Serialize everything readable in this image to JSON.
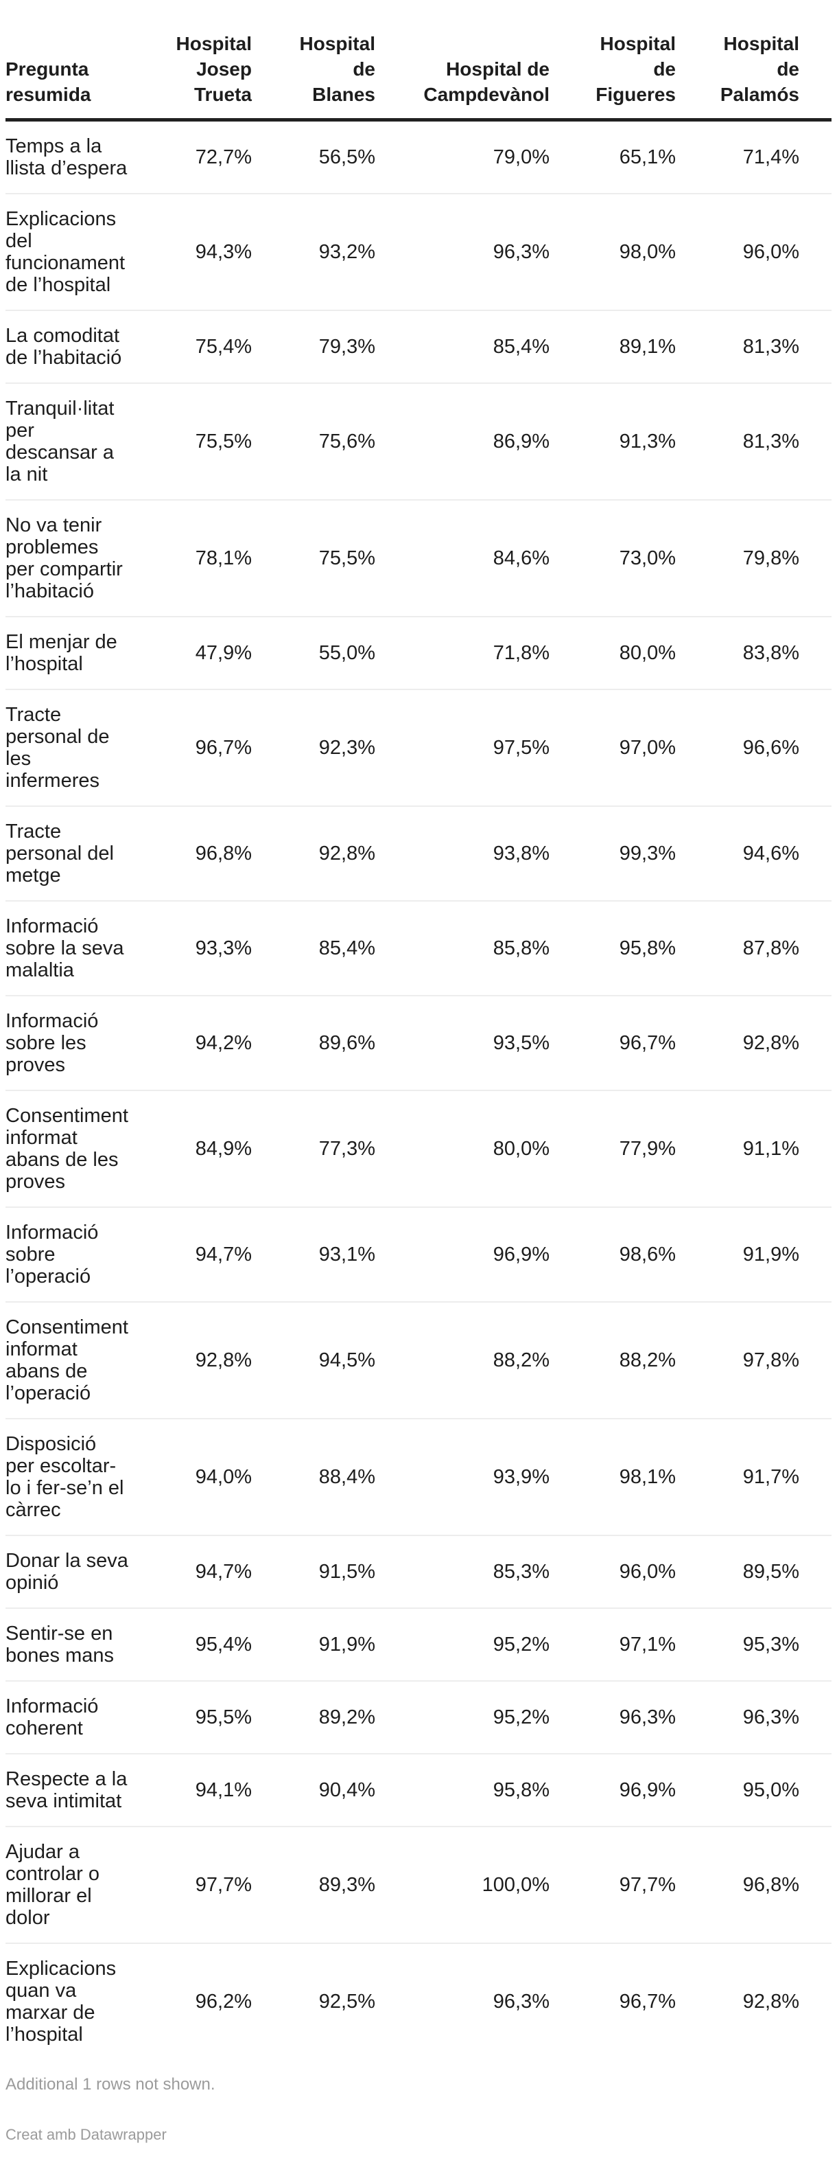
{
  "colors": {
    "text": "#1d1d1d",
    "header_rule": "#212121",
    "row_separator": "#ededed",
    "muted_text": "#9b9b9b",
    "background": "#ffffff"
  },
  "table": {
    "columns": [
      {
        "label": "Pregunta\nresumida"
      },
      {
        "label": "Hospital\nJosep\nTrueta"
      },
      {
        "label": "Hospital\nde\nBlanes"
      },
      {
        "label": "Hospital de\nCampdevànol"
      },
      {
        "label": "Hospital\nde\nFigueres"
      },
      {
        "label": "Hospital\nde\nPalamós"
      }
    ],
    "rows": [
      {
        "label": "Temps a la\nllista d’espera",
        "values": [
          "72,7%",
          "56,5%",
          "79,0%",
          "65,1%",
          "71,4%"
        ]
      },
      {
        "label": "Explicacions\ndel\nfuncionament\nde l’hospital",
        "values": [
          "94,3%",
          "93,2%",
          "96,3%",
          "98,0%",
          "96,0%"
        ]
      },
      {
        "label": "La comoditat\nde l’habitació",
        "values": [
          "75,4%",
          "79,3%",
          "85,4%",
          "89,1%",
          "81,3%"
        ]
      },
      {
        "label": "Tranquil·litat\nper\ndescansar a\nla nit",
        "values": [
          "75,5%",
          "75,6%",
          "86,9%",
          "91,3%",
          "81,3%"
        ]
      },
      {
        "label": "No va tenir\nproblemes\nper compartir\nl’habitació",
        "values": [
          "78,1%",
          "75,5%",
          "84,6%",
          "73,0%",
          "79,8%"
        ]
      },
      {
        "label": "El menjar de\nl’hospital",
        "values": [
          "47,9%",
          "55,0%",
          "71,8%",
          "80,0%",
          "83,8%"
        ]
      },
      {
        "label": "Tracte\npersonal de\nles\ninfermeres",
        "values": [
          "96,7%",
          "92,3%",
          "97,5%",
          "97,0%",
          "96,6%"
        ]
      },
      {
        "label": "Tracte\npersonal del\nmetge",
        "values": [
          "96,8%",
          "92,8%",
          "93,8%",
          "99,3%",
          "94,6%"
        ]
      },
      {
        "label": "Informació\nsobre la seva\nmalaltia",
        "values": [
          "93,3%",
          "85,4%",
          "85,8%",
          "95,8%",
          "87,8%"
        ]
      },
      {
        "label": "Informació\nsobre les\nproves",
        "values": [
          "94,2%",
          "89,6%",
          "93,5%",
          "96,7%",
          "92,8%"
        ]
      },
      {
        "label": "Consentiment\ninformat\nabans de les\nproves",
        "values": [
          "84,9%",
          "77,3%",
          "80,0%",
          "77,9%",
          "91,1%"
        ]
      },
      {
        "label": "Informació\nsobre\nl’operació",
        "values": [
          "94,7%",
          "93,1%",
          "96,9%",
          "98,6%",
          "91,9%"
        ]
      },
      {
        "label": "Consentiment\ninformat\nabans de\nl’operació",
        "values": [
          "92,8%",
          "94,5%",
          "88,2%",
          "88,2%",
          "97,8%"
        ]
      },
      {
        "label": "Disposició\nper escoltar-\nlo i fer-se’n el\ncàrrec",
        "values": [
          "94,0%",
          "88,4%",
          "93,9%",
          "98,1%",
          "91,7%"
        ]
      },
      {
        "label": "Donar la seva\nopinió",
        "values": [
          "94,7%",
          "91,5%",
          "85,3%",
          "96,0%",
          "89,5%"
        ]
      },
      {
        "label": "Sentir-se en\nbones mans",
        "values": [
          "95,4%",
          "91,9%",
          "95,2%",
          "97,1%",
          "95,3%"
        ]
      },
      {
        "label": "Informació\ncoherent",
        "values": [
          "95,5%",
          "89,2%",
          "95,2%",
          "96,3%",
          "96,3%"
        ]
      },
      {
        "label": "Respecte a la\nseva intimitat",
        "values": [
          "94,1%",
          "90,4%",
          "95,8%",
          "96,9%",
          "95,0%"
        ]
      },
      {
        "label": "Ajudar a\ncontrolar o\nmillorar el\ndolor",
        "values": [
          "97,7%",
          "89,3%",
          "100,0%",
          "97,7%",
          "96,8%"
        ]
      },
      {
        "label": "Explicacions\nquan va\nmarxar de\nl’hospital",
        "values": [
          "96,2%",
          "92,5%",
          "96,3%",
          "96,7%",
          "92,8%"
        ]
      }
    ]
  },
  "footer": {
    "note": "Additional 1 rows not shown.",
    "byline": "Creat amb Datawrapper"
  },
  "chart_data": {
    "type": "table",
    "title": "",
    "row_header": "Pregunta resumida",
    "categories": [
      "Temps a la llista d’espera",
      "Explicacions del funcionament de l’hospital",
      "La comoditat de l’habitació",
      "Tranquil·litat per descansar a la nit",
      "No va tenir problemes per compartir l’habitació",
      "El menjar de l’hospital",
      "Tracte personal de les infermeres",
      "Tracte personal del metge",
      "Informació sobre la seva malaltia",
      "Informació sobre les proves",
      "Consentiment informat abans de les proves",
      "Informació sobre l’operació",
      "Consentiment informat abans de l’operació",
      "Disposició per escoltar-lo i fer-se’n el càrrec",
      "Donar la seva opinió",
      "Sentir-se en bones mans",
      "Informació coherent",
      "Respecte a la seva intimitat",
      "Ajudar a controlar o millorar el dolor",
      "Explicacions quan va marxar de l’hospital"
    ],
    "series": [
      {
        "name": "Hospital Josep Trueta",
        "values": [
          72.7,
          94.3,
          75.4,
          75.5,
          78.1,
          47.9,
          96.7,
          96.8,
          93.3,
          94.2,
          84.9,
          94.7,
          92.8,
          94.0,
          94.7,
          95.4,
          95.5,
          94.1,
          97.7,
          96.2
        ]
      },
      {
        "name": "Hospital de Blanes",
        "values": [
          56.5,
          93.2,
          79.3,
          75.6,
          75.5,
          55.0,
          92.3,
          92.8,
          85.4,
          89.6,
          77.3,
          93.1,
          94.5,
          88.4,
          91.5,
          91.9,
          89.2,
          90.4,
          89.3,
          92.5
        ]
      },
      {
        "name": "Hospital de Campdevànol",
        "values": [
          79.0,
          96.3,
          85.4,
          86.9,
          84.6,
          71.8,
          97.5,
          93.8,
          85.8,
          93.5,
          80.0,
          96.9,
          88.2,
          93.9,
          85.3,
          95.2,
          95.2,
          95.8,
          100.0,
          96.3
        ]
      },
      {
        "name": "Hospital de Figueres",
        "values": [
          65.1,
          98.0,
          89.1,
          91.3,
          73.0,
          80.0,
          97.0,
          99.3,
          95.8,
          96.7,
          77.9,
          98.6,
          88.2,
          98.1,
          96.0,
          97.1,
          96.3,
          96.9,
          97.7,
          96.7
        ]
      },
      {
        "name": "Hospital de Palamós",
        "values": [
          71.4,
          96.0,
          81.3,
          81.3,
          79.8,
          83.8,
          96.6,
          94.6,
          87.8,
          92.8,
          91.1,
          91.9,
          97.8,
          91.7,
          89.5,
          95.3,
          96.3,
          95.0,
          96.8,
          92.8
        ]
      }
    ],
    "value_format": "percent, comma decimal separator",
    "notes": "Additional 1 rows not shown."
  }
}
